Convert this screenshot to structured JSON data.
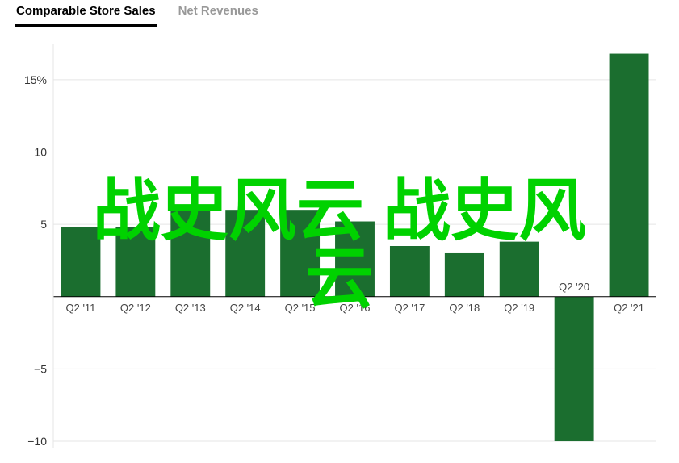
{
  "tabs": [
    {
      "label": "Comparable Store Sales",
      "active": true
    },
    {
      "label": "Net Revenues",
      "active": false
    }
  ],
  "chart": {
    "type": "bar",
    "categories": [
      "Q2 '11",
      "Q2 '12",
      "Q2 '13",
      "Q2 '14",
      "Q2 '15",
      "Q2 '16",
      "Q2 '17",
      "Q2 '18",
      "Q2 '19",
      "Q2 '20",
      "Q2 '21"
    ],
    "values": [
      4.8,
      4.8,
      6.0,
      6.0,
      6.0,
      5.2,
      3.5,
      3.0,
      3.8,
      -10.0,
      16.8
    ],
    "bar_color": "#1b6e2f",
    "background_color": "#ffffff",
    "grid_color": "#e5e5e5",
    "axis_color": "#000000",
    "y_ticks": [
      -10,
      -5,
      5,
      10,
      15
    ],
    "y_tick_labels": [
      "−10",
      "−5",
      "5",
      "10",
      "15%"
    ],
    "ylim": [
      -10.5,
      17.5
    ],
    "bar_width_ratio": 0.72,
    "label_fontsize": 13,
    "ytick_fontsize": 14
  },
  "watermark": {
    "line1": "战史风云 战史风",
    "line2": "云",
    "color": "#00d200",
    "fontsize": 84,
    "fontweight": 800
  }
}
